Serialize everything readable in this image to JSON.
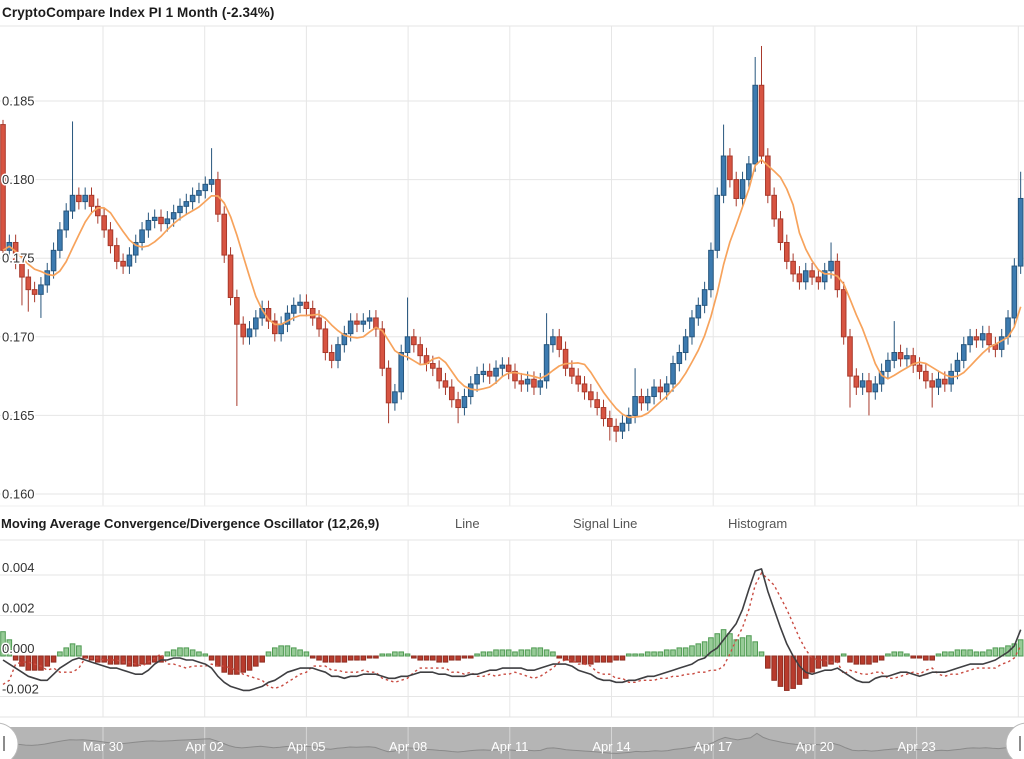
{
  "page": {
    "title": "CryptoCompare Index PI 1 Month (-2.34%)"
  },
  "macd_header": {
    "title": "Moving Average Convergence/Divergence Oscillator (12,26,9)",
    "legend": {
      "line": "Line",
      "signal": "Signal Line",
      "histogram": "Histogram"
    }
  },
  "colors": {
    "up_fill": "#3d7bb0",
    "up_stroke": "#27567d",
    "down_fill": "#d75442",
    "down_stroke": "#a8392b",
    "ma": "#f7a35c",
    "macd_line": "#3f3f42",
    "signal_line": "#c94c42",
    "hist_pos_fill": "#97cb97",
    "hist_pos_stroke": "#4e9a51",
    "hist_neg_fill": "#b83b2d",
    "hist_neg_stroke": "#8f2d21",
    "grid": "#e6e6e6",
    "axis_text": "#333333",
    "nav_bg": "#b5b5b5",
    "nav_line": "#8a8a8a",
    "nav_text": "#ffffff"
  },
  "chart_data": [
    {
      "type": "candlestick",
      "title": "CryptoCompare Index PI 1 Month (-2.34%)",
      "note": "prices stored as price*10000; open[i]=close[i-1]",
      "ylim": [
        0.1595,
        0.189
      ],
      "yticks": [
        {
          "v": 1850,
          "label": "0.185"
        },
        {
          "v": 1800,
          "label": "0.180"
        },
        {
          "v": 1750,
          "label": "0.175"
        },
        {
          "v": 1700,
          "label": "0.170"
        },
        {
          "v": 1650,
          "label": "0.165"
        },
        {
          "v": 1600,
          "label": "0.160"
        }
      ],
      "x_dates": [
        "Mar 30",
        "Apr 02",
        "Apr 05",
        "Apr 08",
        "Apr 11",
        "Apr 14",
        "Apr 17",
        "Apr 20",
        "Apr 23"
      ],
      "first_open": 1835,
      "default_wick": 5,
      "ma_period": 7,
      "closes": [
        1755,
        1760,
        1748,
        1738,
        1730,
        1727,
        1733,
        1742,
        1755,
        1768,
        1780,
        1790,
        1786,
        1790,
        1783,
        1777,
        1768,
        1758,
        1748,
        1745,
        1752,
        1760,
        1768,
        1774,
        1776,
        1772,
        1775,
        1779,
        1783,
        1786,
        1790,
        1793,
        1797,
        1800,
        1778,
        1752,
        1725,
        1708,
        1700,
        1705,
        1712,
        1718,
        1710,
        1702,
        1708,
        1715,
        1720,
        1722,
        1718,
        1712,
        1705,
        1690,
        1685,
        1695,
        1702,
        1710,
        1708,
        1710,
        1712,
        1705,
        1680,
        1658,
        1665,
        1690,
        1700,
        1695,
        1688,
        1683,
        1680,
        1672,
        1668,
        1660,
        1655,
        1662,
        1670,
        1676,
        1678,
        1675,
        1680,
        1682,
        1678,
        1672,
        1670,
        1673,
        1668,
        1672,
        1695,
        1700,
        1692,
        1680,
        1675,
        1670,
        1665,
        1660,
        1655,
        1648,
        1643,
        1640,
        1645,
        1650,
        1662,
        1658,
        1662,
        1668,
        1665,
        1670,
        1683,
        1690,
        1700,
        1712,
        1720,
        1730,
        1755,
        1790,
        1815,
        1800,
        1788,
        1800,
        1810,
        1860,
        1815,
        1790,
        1775,
        1760,
        1748,
        1740,
        1735,
        1742,
        1738,
        1735,
        1742,
        1748,
        1730,
        1700,
        1675,
        1668,
        1672,
        1665,
        1670,
        1678,
        1685,
        1690,
        1686,
        1688,
        1682,
        1678,
        1672,
        1668,
        1673,
        1670,
        1678,
        1685,
        1695,
        1700,
        1698,
        1702,
        1695,
        1692,
        1700,
        1712,
        1745,
        1788
      ],
      "high_overrides": {
        "0": 1838,
        "11": 1837,
        "33": 1820,
        "64": 1725,
        "86": 1715,
        "100": 1680,
        "114": 1835,
        "119": 1878,
        "120": 1885,
        "131": 1760,
        "141": 1710,
        "161": 1805
      },
      "low_overrides": {
        "3": 1720,
        "4": 1716,
        "6": 1712,
        "37": 1656,
        "61": 1645,
        "72": 1645,
        "96": 1634,
        "97": 1633,
        "134": 1655,
        "137": 1650,
        "147": 1655
      }
    },
    {
      "type": "macd",
      "params": "12,26,9",
      "note": "values stored as value*10000; signal = macd - histogram",
      "yticks": [
        {
          "v": 40,
          "label": "0.004"
        },
        {
          "v": 20,
          "label": "0.002"
        },
        {
          "v": 0,
          "label": "0.000"
        },
        {
          "v": -20,
          "label": "-0.002"
        }
      ],
      "macd": [
        -2,
        -4,
        -6,
        -8,
        -10,
        -11,
        -12,
        -12,
        -9,
        -6,
        -4,
        -2,
        -1,
        -2,
        -3,
        -4,
        -5,
        -6,
        -6,
        -7,
        -8,
        -9,
        -9,
        -7,
        -4,
        -2,
        -2,
        -1,
        -1,
        -2,
        -2,
        -3,
        -4,
        -6,
        -10,
        -13,
        -15,
        -16,
        -17,
        -17,
        -16,
        -15,
        -13,
        -12,
        -10,
        -8,
        -7,
        -6,
        -6,
        -6,
        -7,
        -8,
        -10,
        -10,
        -11,
        -10,
        -10,
        -9,
        -9,
        -9,
        -10,
        -11,
        -11,
        -10,
        -10,
        -9,
        -8,
        -8,
        -8,
        -9,
        -9,
        -10,
        -10,
        -10,
        -9,
        -9,
        -8,
        -7,
        -7,
        -6,
        -6,
        -6,
        -6,
        -7,
        -7,
        -6,
        -5,
        -4,
        -4,
        -4,
        -5,
        -7,
        -8,
        -9,
        -11,
        -12,
        -12,
        -13,
        -13,
        -12,
        -12,
        -11,
        -10,
        -10,
        -9,
        -8,
        -7,
        -6,
        -5,
        -4,
        -2,
        -1,
        2,
        4,
        8,
        12,
        16,
        23,
        33,
        42,
        43,
        32,
        23,
        14,
        6,
        0,
        -5,
        -8,
        -9,
        -8,
        -7,
        -7,
        -6,
        -8,
        -10,
        -12,
        -13,
        -13,
        -11,
        -10,
        -10,
        -9,
        -8,
        -8,
        -9,
        -10,
        -9,
        -8,
        -8,
        -8,
        -7,
        -6,
        -5,
        -4,
        -4,
        -4,
        -3,
        -2,
        0,
        2,
        5,
        13
      ],
      "histogram": [
        12,
        8,
        -2,
        -5,
        -7,
        -7,
        -7,
        -5,
        -3,
        2,
        4,
        6,
        5,
        -1,
        -2,
        -3,
        -3,
        -4,
        -4,
        -4,
        -5,
        -5,
        -4,
        -4,
        -3,
        -3,
        2,
        3,
        4,
        4,
        3,
        2,
        1,
        -2,
        -5,
        -8,
        -9,
        -9,
        -8,
        -7,
        -5,
        -3,
        2,
        4,
        5,
        5,
        4,
        3,
        2,
        -1,
        -2,
        -3,
        -3,
        -3,
        -3,
        -2,
        -2,
        -2,
        -1,
        -1,
        1,
        1,
        2,
        2,
        1,
        -1,
        -2,
        -2,
        -2,
        -3,
        -3,
        -2,
        -2,
        -1,
        -1,
        1,
        2,
        2,
        3,
        3,
        3,
        2,
        3,
        3,
        4,
        4,
        3,
        2,
        -1,
        -2,
        -3,
        -3,
        -4,
        -4,
        -3,
        -3,
        -3,
        -2,
        -2,
        1,
        1,
        1,
        2,
        2,
        2,
        3,
        3,
        4,
        4,
        5,
        6,
        7,
        9,
        11,
        13,
        11,
        8,
        9,
        10,
        7,
        2,
        -6,
        -12,
        -15,
        -17,
        -16,
        -14,
        -11,
        -8,
        -6,
        -5,
        -4,
        -3,
        1,
        -3,
        -4,
        -4,
        -4,
        -3,
        -2,
        1,
        2,
        2,
        1,
        -1,
        -1,
        -2,
        -2,
        1,
        2,
        2,
        3,
        3,
        3,
        2,
        2,
        3,
        4,
        4,
        5,
        6,
        8
      ]
    }
  ]
}
